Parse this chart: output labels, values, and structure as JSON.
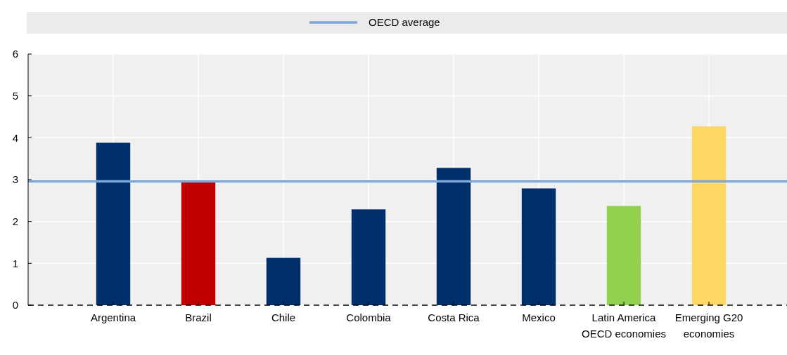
{
  "chart_data": {
    "type": "bar",
    "categories": [
      "Argentina",
      "Brazil",
      "Chile",
      "Colombia",
      "Costa Rica",
      "Mexico",
      "Latin America OECD economies",
      "Emerging G20 economies"
    ],
    "values": [
      3.88,
      2.95,
      1.13,
      2.29,
      3.28,
      2.79,
      2.37,
      4.27
    ],
    "colors": [
      "#002f6c",
      "#c00000",
      "#002f6c",
      "#002f6c",
      "#002f6c",
      "#002f6c",
      "#92d050",
      "#fdd865"
    ],
    "ylim": [
      0,
      6
    ],
    "yticks": [
      0,
      1,
      2,
      3,
      4,
      5,
      6
    ],
    "grid": true,
    "legend": "top",
    "ref_lines": [
      {
        "axis": "y",
        "value": 2.96,
        "label": "OECD average",
        "color": "#7da7d9"
      }
    ]
  }
}
